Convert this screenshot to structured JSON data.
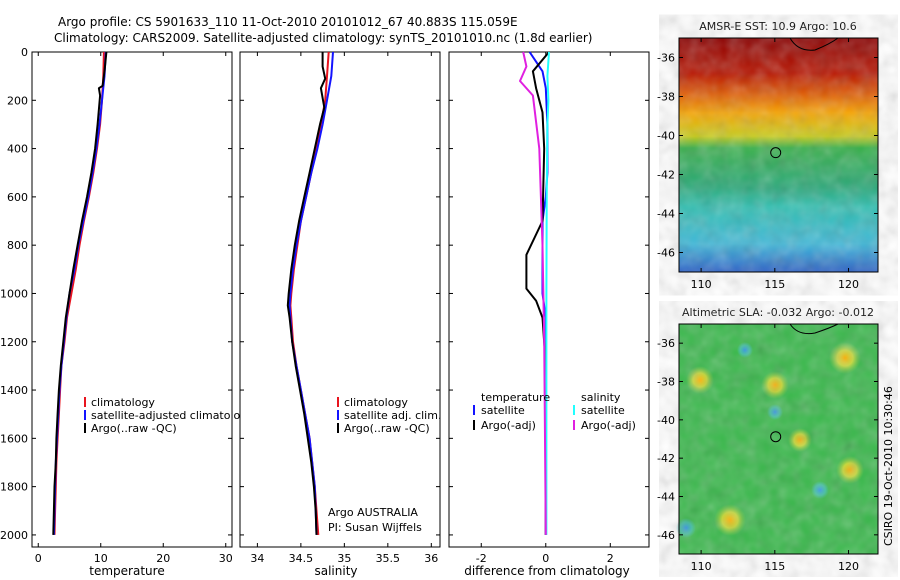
{
  "header": {
    "line1": "Argo profile: CS 5901633_110 11-Oct-2010 20101012_67 40.883S 115.059E",
    "line2": "Climatology: CARS2009. Satellite-adjusted climatology: synTS_20101010.nc (1.8d earlier)"
  },
  "credit": "CSIRO 19-Oct-2010 10:30:46",
  "colors": {
    "red": "#e8141e",
    "blue": "#1414ff",
    "black": "#000000",
    "cyan": "#20ffff",
    "magenta": "#e020e0"
  },
  "chart_data": [
    {
      "type": "line",
      "name": "temperature-panel",
      "xlabel": "temperature",
      "ylabel": "",
      "xlim": [
        -1,
        31
      ],
      "ylim": [
        2050,
        0
      ],
      "xticks": [
        0,
        10,
        20,
        30
      ],
      "yticks": [
        0,
        200,
        400,
        600,
        800,
        1000,
        1200,
        1400,
        1600,
        1800,
        2000
      ],
      "legend": [
        "climatology",
        "satellite-adjusted climatology",
        "Argo(..raw -QC)"
      ],
      "series": [
        {
          "name": "climatology",
          "color": "red",
          "points": [
            [
              10.5,
              0
            ],
            [
              10.4,
              100
            ],
            [
              10.2,
              200
            ],
            [
              9.9,
              300
            ],
            [
              9.4,
              400
            ],
            [
              8.8,
              500
            ],
            [
              8.1,
              600
            ],
            [
              7.3,
              700
            ],
            [
              6.6,
              800
            ],
            [
              6,
              900
            ],
            [
              5.3,
              1000
            ],
            [
              4.6,
              1100
            ],
            [
              4.2,
              1200
            ],
            [
              3.7,
              1300
            ],
            [
              3.5,
              1400
            ],
            [
              3.3,
              1500
            ],
            [
              3.1,
              1600
            ],
            [
              2.9,
              1700
            ],
            [
              2.8,
              1800
            ],
            [
              2.7,
              1900
            ],
            [
              2.6,
              2000
            ]
          ]
        },
        {
          "name": "satellite-adjusted climatology",
          "color": "blue",
          "points": [
            [
              10.8,
              0
            ],
            [
              10.6,
              100
            ],
            [
              10.2,
              200
            ],
            [
              9.8,
              300
            ],
            [
              9.3,
              400
            ],
            [
              8.7,
              500
            ],
            [
              8,
              600
            ],
            [
              7.2,
              700
            ],
            [
              6.4,
              800
            ],
            [
              5.8,
              900
            ],
            [
              5,
              1000
            ],
            [
              4.5,
              1100
            ],
            [
              4.1,
              1200
            ],
            [
              3.7,
              1300
            ],
            [
              3.4,
              1400
            ],
            [
              3.2,
              1500
            ],
            [
              3,
              1600
            ],
            [
              2.8,
              1700
            ],
            [
              2.7,
              1800
            ],
            [
              2.6,
              1900
            ],
            [
              2.5,
              2000
            ]
          ]
        },
        {
          "name": "Argo(..raw -QC)",
          "color": "black",
          "points": [
            [
              10.9,
              0
            ],
            [
              10.6,
              80
            ],
            [
              10.3,
              140
            ],
            [
              9.7,
              150
            ],
            [
              9.9,
              180
            ],
            [
              9.5,
              300
            ],
            [
              9.1,
              400
            ],
            [
              8.5,
              500
            ],
            [
              7.8,
              600
            ],
            [
              7,
              700
            ],
            [
              6.3,
              800
            ],
            [
              5.6,
              900
            ],
            [
              5,
              1000
            ],
            [
              4.4,
              1100
            ],
            [
              4,
              1200
            ],
            [
              3.6,
              1300
            ],
            [
              3.3,
              1400
            ],
            [
              3.1,
              1500
            ],
            [
              2.9,
              1600
            ],
            [
              2.8,
              1700
            ],
            [
              2.6,
              1800
            ],
            [
              2.5,
              1900
            ],
            [
              2.4,
              2000
            ]
          ]
        }
      ]
    },
    {
      "type": "line",
      "name": "salinity-panel",
      "xlabel": "salinity",
      "ylabel": "",
      "xlim": [
        33.8,
        36.1
      ],
      "xticks": [
        34,
        34.5,
        35,
        35.5,
        36
      ],
      "xticklabels": [
        "34",
        "34.5",
        "35",
        "35.5",
        "36"
      ],
      "legend": [
        "climatology",
        "satellite adj. clim.",
        "Argo(..raw -QC)"
      ],
      "annotations": [
        "Argo AUSTRALIA",
        "PI: Susan Wijffels"
      ],
      "series": [
        {
          "name": "climatology",
          "color": "red",
          "points": [
            [
              34.82,
              0
            ],
            [
              34.8,
              100
            ],
            [
              34.78,
              200
            ],
            [
              34.73,
              300
            ],
            [
              34.68,
              400
            ],
            [
              34.62,
              500
            ],
            [
              34.56,
              600
            ],
            [
              34.5,
              700
            ],
            [
              34.46,
              800
            ],
            [
              34.42,
              900
            ],
            [
              34.39,
              1000
            ],
            [
              34.38,
              1050
            ],
            [
              34.39,
              1100
            ],
            [
              34.41,
              1200
            ],
            [
              34.45,
              1300
            ],
            [
              34.5,
              1400
            ],
            [
              34.55,
              1500
            ],
            [
              34.6,
              1600
            ],
            [
              34.63,
              1700
            ],
            [
              34.66,
              1800
            ],
            [
              34.68,
              1900
            ],
            [
              34.7,
              2000
            ]
          ]
        },
        {
          "name": "satellite adj. clim.",
          "color": "blue",
          "points": [
            [
              34.87,
              0
            ],
            [
              34.85,
              100
            ],
            [
              34.8,
              200
            ],
            [
              34.75,
              300
            ],
            [
              34.69,
              400
            ],
            [
              34.62,
              500
            ],
            [
              34.56,
              600
            ],
            [
              34.5,
              700
            ],
            [
              34.45,
              800
            ],
            [
              34.41,
              900
            ],
            [
              34.38,
              1000
            ],
            [
              34.37,
              1050
            ],
            [
              34.38,
              1100
            ],
            [
              34.4,
              1200
            ],
            [
              34.45,
              1300
            ],
            [
              34.5,
              1400
            ],
            [
              34.55,
              1500
            ],
            [
              34.6,
              1600
            ],
            [
              34.63,
              1700
            ],
            [
              34.66,
              1800
            ],
            [
              34.67,
              1900
            ],
            [
              34.68,
              2000
            ]
          ]
        },
        {
          "name": "Argo(..raw -QC)",
          "color": "black",
          "points": [
            [
              34.75,
              0
            ],
            [
              34.75,
              60
            ],
            [
              34.78,
              110
            ],
            [
              34.73,
              150
            ],
            [
              34.77,
              230
            ],
            [
              34.72,
              300
            ],
            [
              34.66,
              400
            ],
            [
              34.6,
              500
            ],
            [
              34.54,
              600
            ],
            [
              34.48,
              700
            ],
            [
              34.43,
              800
            ],
            [
              34.39,
              900
            ],
            [
              34.36,
              1000
            ],
            [
              34.35,
              1050
            ],
            [
              34.37,
              1100
            ],
            [
              34.4,
              1200
            ],
            [
              34.44,
              1300
            ],
            [
              34.49,
              1400
            ],
            [
              34.54,
              1500
            ],
            [
              34.58,
              1600
            ],
            [
              34.62,
              1700
            ],
            [
              34.65,
              1800
            ],
            [
              34.67,
              1900
            ],
            [
              34.68,
              2000
            ]
          ]
        }
      ]
    },
    {
      "type": "line",
      "name": "difference-panel",
      "xlabel": "difference from climatology",
      "xlim": [
        -3,
        3.2
      ],
      "xticks": [
        -2,
        0,
        2
      ],
      "legend_temperature_title": "temperature",
      "legend_salinity_title": "salinity",
      "legend": [
        "satellite",
        "Argo(-adj)",
        "satellite",
        "Argo(-adj)"
      ],
      "series": [
        {
          "name": "temperature satellite",
          "color": "blue",
          "points": [
            [
              -0.5,
              0
            ],
            [
              -0.3,
              40
            ],
            [
              -0.1,
              80
            ],
            [
              0,
              150
            ],
            [
              0.05,
              300
            ],
            [
              0.05,
              500
            ],
            [
              0,
              600
            ],
            [
              -0.1,
              700
            ],
            [
              -0.1,
              800
            ],
            [
              -0.1,
              900
            ],
            [
              -0.1,
              1000
            ],
            [
              0,
              1100
            ],
            [
              0,
              1400
            ],
            [
              0,
              2000
            ]
          ]
        },
        {
          "name": "temperature Argo(-adj)",
          "color": "black",
          "points": [
            [
              0.1,
              0
            ],
            [
              -0.4,
              80
            ],
            [
              -0.3,
              150
            ],
            [
              -0.1,
              250
            ],
            [
              -0.05,
              400
            ],
            [
              -0.1,
              700
            ],
            [
              -0.6,
              840
            ],
            [
              -0.6,
              980
            ],
            [
              -0.3,
              1030
            ],
            [
              -0.1,
              1100
            ],
            [
              0,
              1300
            ],
            [
              0,
              2000
            ]
          ]
        },
        {
          "name": "salinity satellite",
          "color": "cyan",
          "points": [
            [
              0.1,
              0
            ],
            [
              0.05,
              100
            ],
            [
              0.08,
              200
            ],
            [
              0.05,
              300
            ],
            [
              0.03,
              600
            ],
            [
              0.02,
              1000
            ],
            [
              0.02,
              1500
            ],
            [
              0.02,
              2000
            ]
          ]
        },
        {
          "name": "salinity Argo(-adj)",
          "color": "magenta",
          "points": [
            [
              -0.7,
              0
            ],
            [
              -0.6,
              60
            ],
            [
              -0.8,
              120
            ],
            [
              -0.4,
              180
            ],
            [
              -0.2,
              400
            ],
            [
              -0.1,
              800
            ],
            [
              -0.05,
              1200
            ],
            [
              0,
              2000
            ]
          ]
        }
      ]
    },
    {
      "type": "heatmap",
      "name": "sst-map",
      "title": "AMSR-E SST: 10.9 Argo: 10.6",
      "xlim": [
        108.5,
        122
      ],
      "ylim": [
        -47,
        -35
      ],
      "xticks": [
        110,
        115,
        120
      ],
      "yticks": [
        -36,
        -38,
        -40,
        -42,
        -44,
        -46
      ],
      "marker": {
        "lon": 115.06,
        "lat": -40.88
      }
    },
    {
      "type": "heatmap",
      "name": "sla-map",
      "title": "Altimetric SLA: -0.032 Argo: -0.012",
      "xlim": [
        108.5,
        122
      ],
      "ylim": [
        -47,
        -35
      ],
      "xticks": [
        110,
        115,
        120
      ],
      "yticks": [
        -36,
        -38,
        -40,
        -42,
        -44,
        -46
      ],
      "marker": {
        "lon": 115.06,
        "lat": -40.88
      }
    }
  ]
}
